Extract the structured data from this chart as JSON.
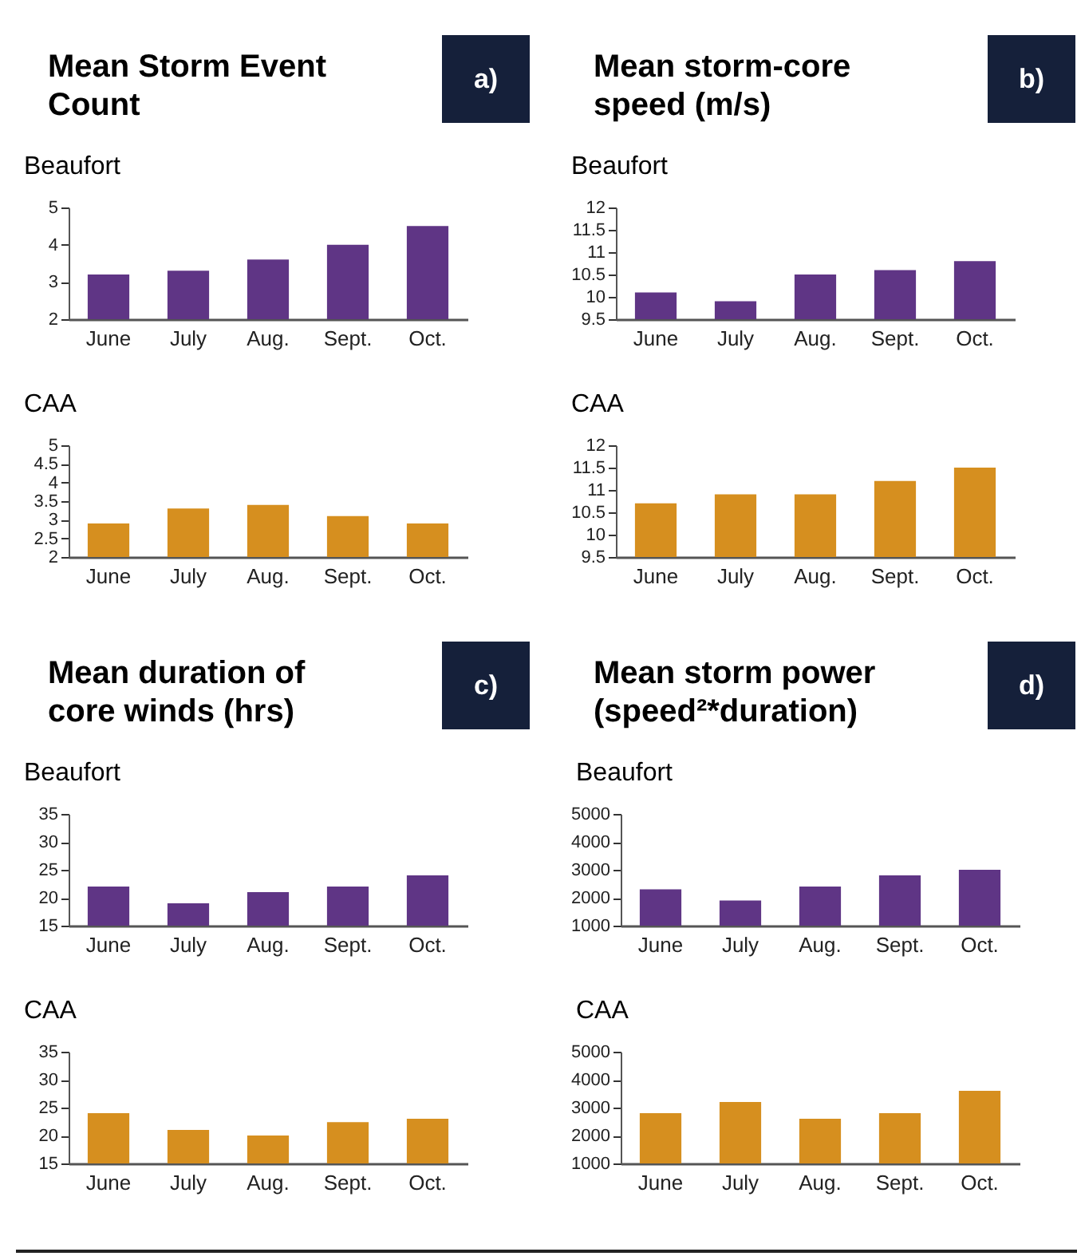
{
  "chart_data": [
    {
      "type": "bar",
      "title": "Mean Storm Event Count",
      "subtitle": "Beaufort",
      "annotations": [
        "a)"
      ],
      "categories": [
        "June",
        "July",
        "Aug.",
        "Sept.",
        "Oct."
      ],
      "series": [
        {
          "color": "#5f3585",
          "values": [
            3.2,
            3.3,
            3.6,
            4.0,
            4.5
          ]
        }
      ],
      "ylim": [
        2,
        5
      ],
      "yticks": [
        2,
        3,
        4,
        5
      ]
    },
    {
      "type": "bar",
      "subtitle": "CAA",
      "categories": [
        "June",
        "July",
        "Aug.",
        "Sept.",
        "Oct."
      ],
      "series": [
        {
          "color": "#d68f1f",
          "values": [
            2.9,
            3.3,
            3.4,
            3.1,
            2.9
          ]
        }
      ],
      "ylim": [
        2,
        5
      ],
      "yticks": [
        2,
        2.5,
        3,
        3.5,
        4,
        4.5,
        5
      ]
    },
    {
      "type": "bar",
      "title": "Mean storm-core speed (m/s)",
      "subtitle": "Beaufort",
      "annotations": [
        "b)"
      ],
      "categories": [
        "June",
        "July",
        "Aug.",
        "Sept.",
        "Oct."
      ],
      "series": [
        {
          "color": "#5f3585",
          "values": [
            10.1,
            9.9,
            10.5,
            10.6,
            10.8
          ]
        }
      ],
      "ylim": [
        9.5,
        12
      ],
      "yticks": [
        9.5,
        10,
        10.5,
        11,
        11.5,
        12
      ]
    },
    {
      "type": "bar",
      "subtitle": "CAA",
      "categories": [
        "June",
        "July",
        "Aug.",
        "Sept.",
        "Oct."
      ],
      "series": [
        {
          "color": "#d68f1f",
          "values": [
            10.7,
            10.9,
            10.9,
            11.2,
            11.5
          ]
        }
      ],
      "ylim": [
        9.5,
        12
      ],
      "yticks": [
        9.5,
        10,
        10.5,
        11,
        11.5,
        12
      ]
    },
    {
      "type": "bar",
      "title": "Mean duration of core winds (hrs)",
      "subtitle": "Beaufort",
      "annotations": [
        "c)"
      ],
      "categories": [
        "June",
        "July",
        "Aug.",
        "Sept.",
        "Oct."
      ],
      "series": [
        {
          "color": "#5f3585",
          "values": [
            22,
            19,
            21,
            22,
            24
          ]
        }
      ],
      "ylim": [
        15,
        35
      ],
      "yticks": [
        15,
        20,
        25,
        30,
        35
      ]
    },
    {
      "type": "bar",
      "subtitle": "CAA",
      "categories": [
        "June",
        "July",
        "Aug.",
        "Sept.",
        "Oct."
      ],
      "series": [
        {
          "color": "#d68f1f",
          "values": [
            24,
            21,
            20,
            22.4,
            23
          ]
        }
      ],
      "ylim": [
        15,
        35
      ],
      "yticks": [
        15,
        20,
        25,
        30,
        35
      ]
    },
    {
      "type": "bar",
      "title": "Mean storm power (speed²*duration)",
      "subtitle": "Beaufort",
      "annotations": [
        "d)"
      ],
      "categories": [
        "June",
        "July",
        "Aug.",
        "Sept.",
        "Oct."
      ],
      "series": [
        {
          "color": "#5f3585",
          "values": [
            2300,
            1900,
            2400,
            2800,
            3000
          ]
        }
      ],
      "ylim": [
        1000,
        5000
      ],
      "yticks": [
        1000,
        2000,
        3000,
        4000,
        5000
      ]
    },
    {
      "type": "bar",
      "subtitle": "CAA",
      "categories": [
        "June",
        "July",
        "Aug.",
        "Sept.",
        "Oct."
      ],
      "series": [
        {
          "color": "#d68f1f",
          "values": [
            2800,
            3200,
            2600,
            2800,
            3600
          ]
        }
      ],
      "ylim": [
        1000,
        5000
      ],
      "yticks": [
        1000,
        2000,
        3000,
        4000,
        5000
      ]
    }
  ]
}
